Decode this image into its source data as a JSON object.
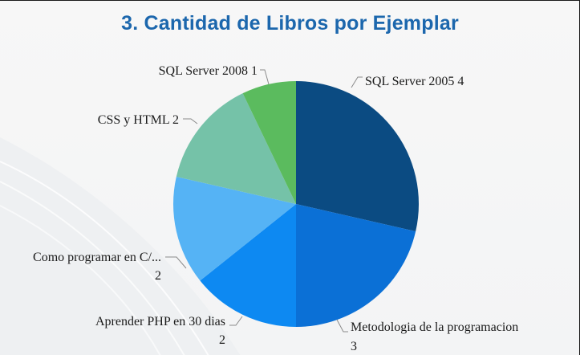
{
  "chart_data": {
    "type": "pie",
    "title": "3. Cantidad de Libros por Ejemplar",
    "slices": [
      {
        "label": "SQL Server 2005",
        "value_label": "4",
        "value": 4,
        "color": "#0b4b82"
      },
      {
        "label": "Metodologia de la programacion",
        "value_label": "3",
        "value": 3,
        "color": "#0b70d6"
      },
      {
        "label": "Aprender PHP en 30 dias",
        "value_label": "2",
        "value": 2,
        "color": "#0d89f2"
      },
      {
        "label": "Como programar en C/...",
        "value_label": "2",
        "value": 2,
        "color": "#55b3f5"
      },
      {
        "label": "CSS y HTML",
        "value_label": "2",
        "value": 2,
        "color": "#75c2a8"
      },
      {
        "label": "SQL Server 2008",
        "value_label": "1",
        "value": 1,
        "color": "#5bbb5e"
      }
    ]
  }
}
